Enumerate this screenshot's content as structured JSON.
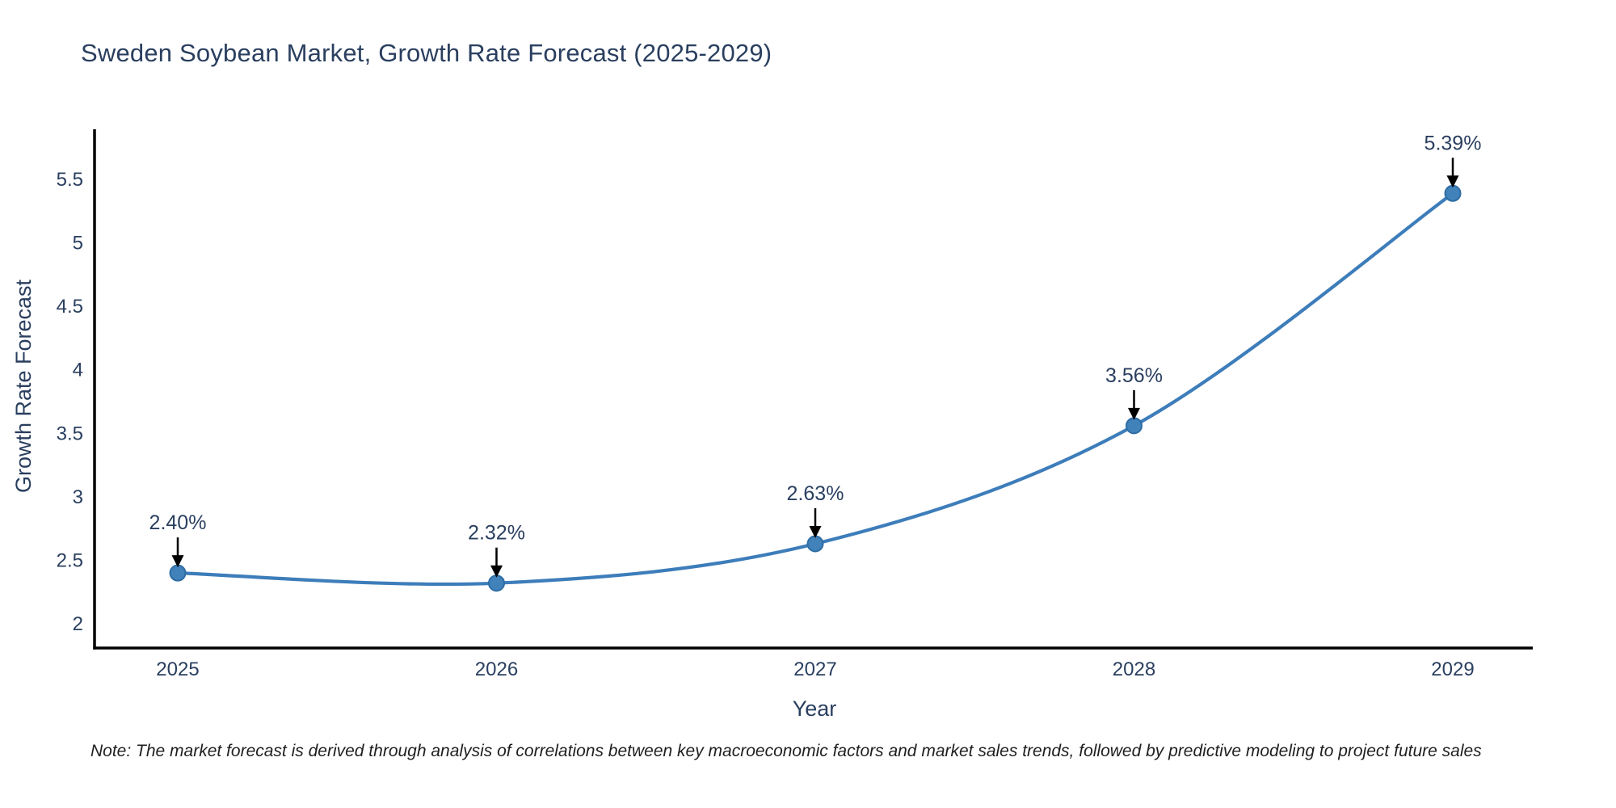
{
  "title": "Sweden Soybean Market, Growth Rate Forecast (2025-2029)",
  "note": "Note: The market forecast is derived through analysis of correlations between key macroeconomic factors and market sales trends, followed by predictive modeling to project future sales",
  "colors": {
    "line": "#3d7dba",
    "marker_fill": "#4182bb",
    "marker_edge": "#2e6da4",
    "axis": "#000000",
    "text": "#2a3f5f",
    "annotation_arrow": "#000000",
    "background": "#ffffff"
  },
  "chart_data": {
    "type": "line",
    "title": "Sweden Soybean Market, Growth Rate Forecast (2025-2029)",
    "xlabel": "Year",
    "ylabel": "Growth Rate Forecast",
    "x": [
      2025,
      2026,
      2027,
      2028,
      2029
    ],
    "y": [
      2.4,
      2.32,
      2.63,
      3.56,
      5.39
    ],
    "point_labels": [
      "2.40%",
      "2.32%",
      "2.63%",
      "3.56%",
      "5.39%"
    ],
    "yticks": [
      2,
      2.5,
      3,
      3.5,
      4,
      4.5,
      5,
      5.5
    ],
    "xticks": [
      "2025",
      "2026",
      "2027",
      "2028",
      "2029"
    ],
    "ylim": [
      1.8,
      5.9
    ],
    "grid": false,
    "legend": "none",
    "marker": "circle",
    "smooth": true
  }
}
